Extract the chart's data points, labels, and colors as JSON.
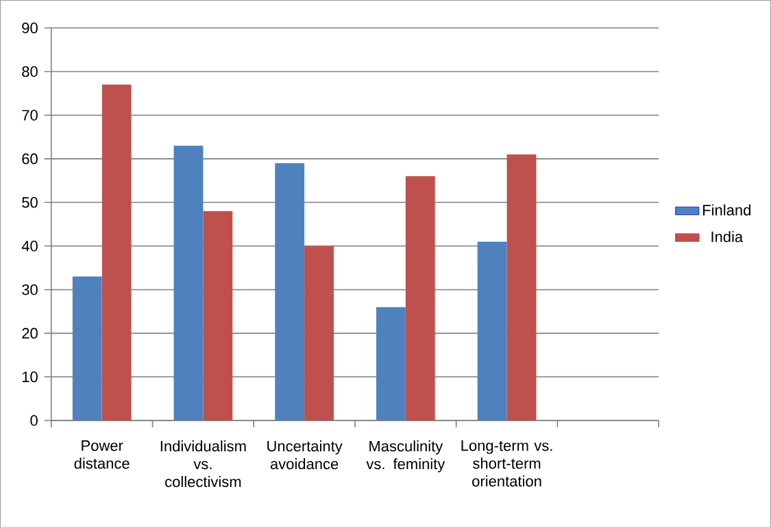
{
  "chart_data": {
    "type": "bar",
    "categories": [
      "Power distance",
      "Individualism vs. collectivism",
      "Uncertainty avoidance",
      "Masculinity vs. feminity",
      "Long-term vs. short-term orientation",
      null
    ],
    "series": [
      {
        "name": "Finland",
        "color": "#4f81bd",
        "values": [
          33,
          63,
          59,
          26,
          41,
          null
        ]
      },
      {
        "name": "India",
        "color": "#c0504d",
        "values": [
          77,
          48,
          40,
          56,
          61,
          null
        ]
      }
    ],
    "ylim": [
      0,
      90
    ],
    "yticks": [
      0,
      10,
      20,
      30,
      40,
      50,
      60,
      70,
      80,
      90
    ],
    "grid": "y",
    "legend": "right"
  }
}
